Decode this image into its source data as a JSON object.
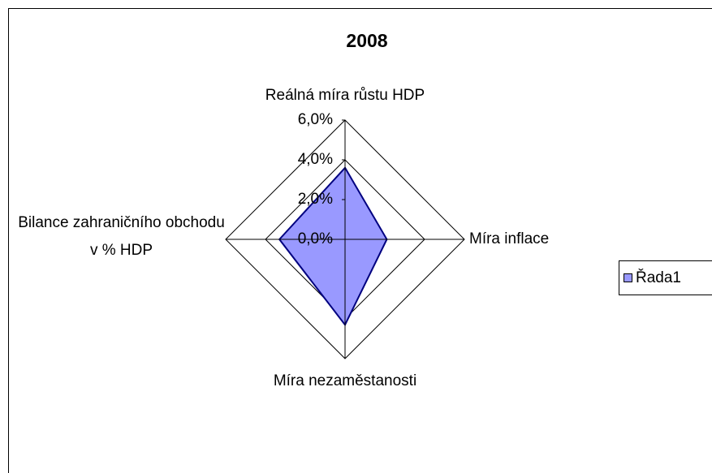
{
  "chart_data": {
    "type": "radar",
    "title": "2008",
    "categories": [
      "Reálná míra růstu HDP",
      "Míra inflace",
      "Míra nezaměstanosti",
      "Bilance zahraničního obchodu v % HDP"
    ],
    "series": [
      {
        "name": "Řada1",
        "color": "#9999ff",
        "values": [
          3.6,
          2.1,
          4.3,
          3.3
        ]
      }
    ],
    "ylim": [
      0,
      6
    ],
    "yticks": [
      {
        "value": 0,
        "label": "0,0%"
      },
      {
        "value": 2,
        "label": "2,0%"
      },
      {
        "value": 4,
        "label": "4,0%"
      },
      {
        "value": 6,
        "label": "6,0%"
      }
    ],
    "grid": true,
    "legend": "right"
  }
}
